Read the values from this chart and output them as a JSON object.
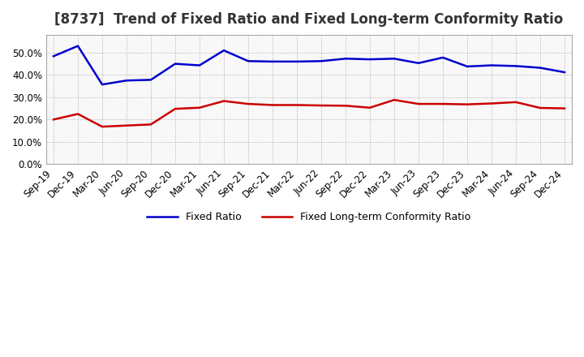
{
  "title": "[8737]  Trend of Fixed Ratio and Fixed Long-term Conformity Ratio",
  "x_labels": [
    "Sep-19",
    "Dec-19",
    "Mar-20",
    "Jun-20",
    "Sep-20",
    "Dec-20",
    "Mar-21",
    "Jun-21",
    "Sep-21",
    "Dec-21",
    "Mar-22",
    "Jun-22",
    "Sep-22",
    "Dec-22",
    "Mar-23",
    "Jun-23",
    "Sep-23",
    "Dec-23",
    "Mar-24",
    "Jun-24",
    "Sep-24",
    "Dec-24"
  ],
  "fixed_ratio": [
    0.484,
    0.53,
    0.357,
    0.375,
    0.378,
    0.45,
    0.443,
    0.51,
    0.462,
    0.46,
    0.46,
    0.462,
    0.473,
    0.47,
    0.473,
    0.453,
    0.478,
    0.438,
    0.443,
    0.44,
    0.432,
    0.412
  ],
  "fixed_lt_ratio": [
    0.2,
    0.225,
    0.168,
    0.173,
    0.178,
    0.248,
    0.253,
    0.283,
    0.27,
    0.265,
    0.265,
    0.263,
    0.262,
    0.253,
    0.288,
    0.27,
    0.27,
    0.268,
    0.272,
    0.278,
    0.252,
    0.25
  ],
  "fixed_ratio_color": "#0000cc",
  "fixed_lt_ratio_color": "#cc0000",
  "ylim": [
    0.0,
    0.58
  ],
  "yticks": [
    0.0,
    0.1,
    0.2,
    0.3,
    0.4,
    0.5
  ],
  "background_color": "#ffffff",
  "plot_bg_color": "#f8f8f8",
  "grid_color": "#aaaaaa",
  "legend_fixed": "Fixed Ratio",
  "legend_lt": "Fixed Long-term Conformity Ratio",
  "title_fontsize": 12,
  "axis_fontsize": 8.5,
  "legend_fontsize": 9
}
